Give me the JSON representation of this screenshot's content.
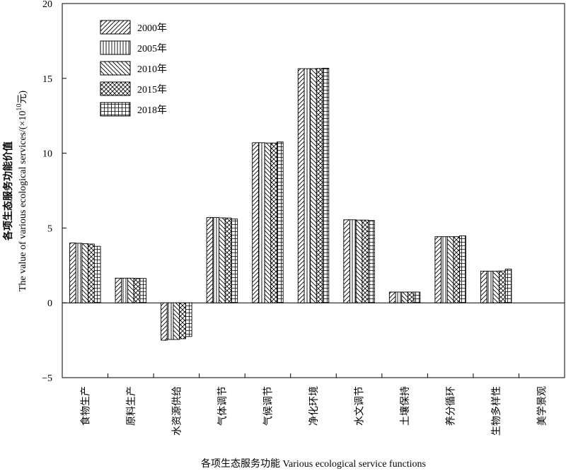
{
  "chart_data": {
    "type": "bar",
    "categories": [
      "食物生产",
      "原料生产",
      "水资源供给",
      "气体调节",
      "气候调节",
      "净化环境",
      "水文调节",
      "土壤保持",
      "养分循环",
      "生物多样性",
      "美学景观"
    ],
    "series": [
      {
        "name": "2000年",
        "values": [
          4.0,
          1.65,
          -2.5,
          5.7,
          10.7,
          15.65,
          5.55,
          0.72,
          4.42,
          2.12,
          0.0
        ]
      },
      {
        "name": "2005年",
        "values": [
          3.98,
          1.65,
          -2.45,
          5.7,
          10.7,
          15.65,
          5.55,
          0.72,
          4.42,
          2.12,
          0.0
        ]
      },
      {
        "name": "2010年",
        "values": [
          3.95,
          1.65,
          -2.45,
          5.68,
          10.68,
          15.65,
          5.53,
          0.72,
          4.42,
          2.12,
          0.0
        ]
      },
      {
        "name": "2015年",
        "values": [
          3.93,
          1.64,
          -2.4,
          5.67,
          10.68,
          15.66,
          5.53,
          0.72,
          4.42,
          2.13,
          0.0
        ]
      },
      {
        "name": "2018年",
        "values": [
          3.78,
          1.63,
          -2.25,
          5.6,
          10.75,
          15.68,
          5.5,
          0.72,
          4.48,
          2.25,
          0.0
        ]
      }
    ],
    "xlabel": "各项生态服务功能  Various ecological service functions",
    "ylabel_cn": "各项生态服务功能价值",
    "ylabel_en_prefix": "The value of various ecological services/(×10",
    "ylabel_en_exp": "10",
    "ylabel_en_suffix": "元)",
    "ylim": [
      -5,
      20
    ],
    "yticks": [
      "-5",
      "0",
      "5",
      "10",
      "15",
      "20"
    ],
    "grid": false,
    "legend_position": "top-left",
    "patterns": [
      "forward-diagonal",
      "vertical",
      "backward-diagonal",
      "crosshatch-diagonal",
      "grid"
    ]
  }
}
